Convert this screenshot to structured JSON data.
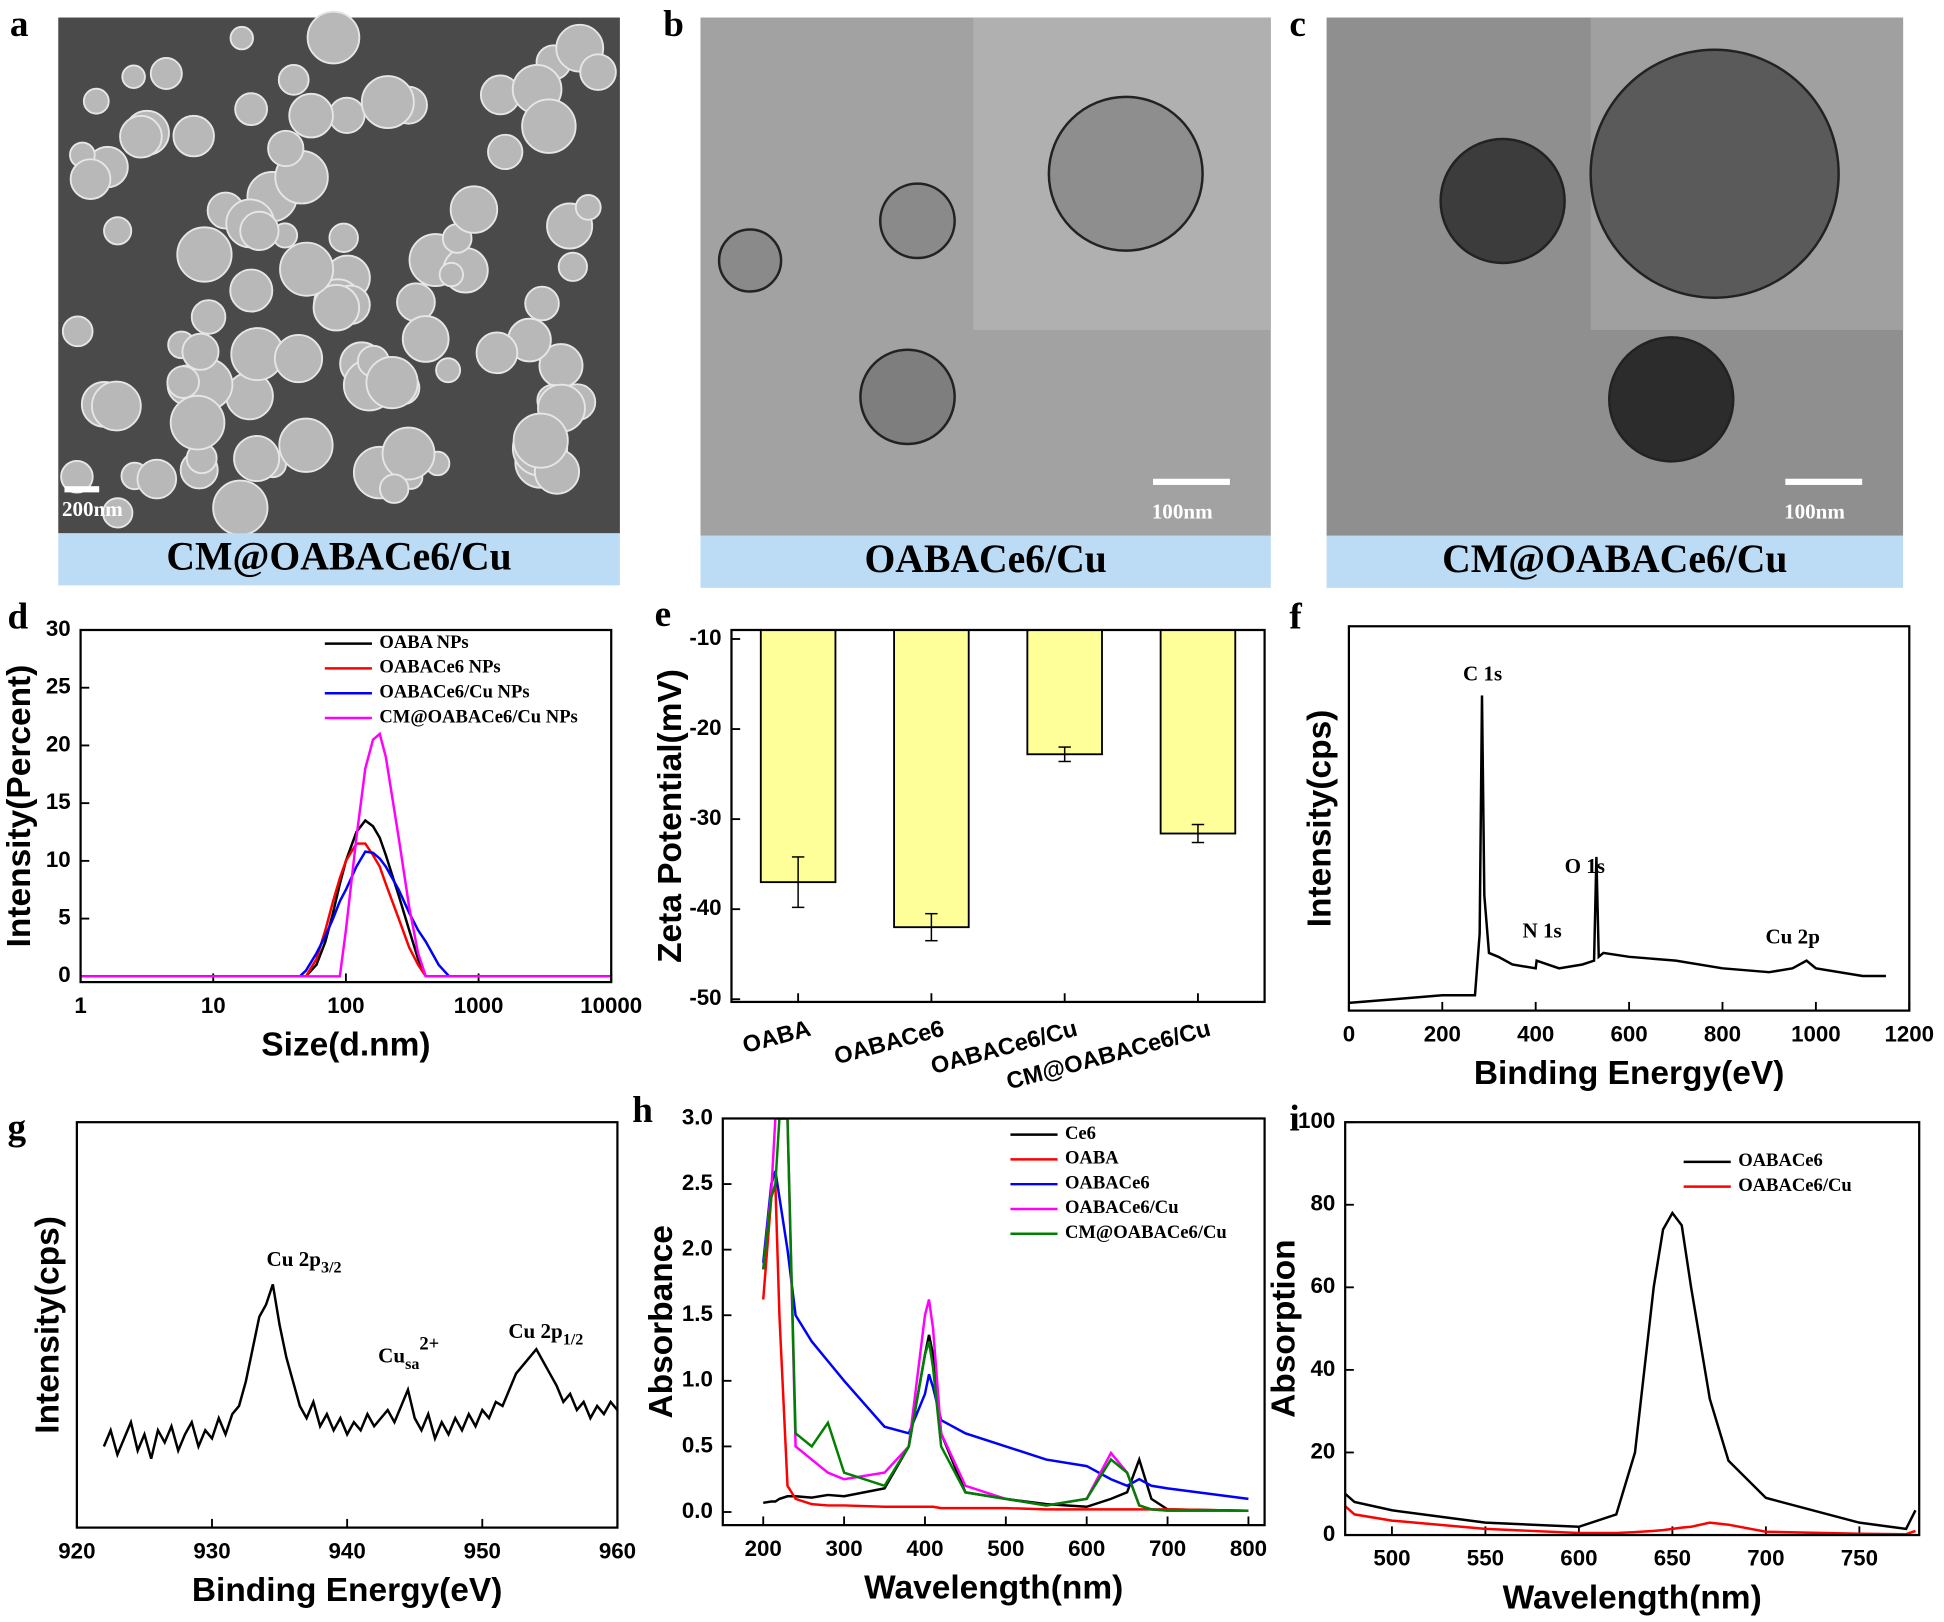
{
  "panels": [
    {
      "letter": "a",
      "caption": "CM@OABACe6/Cu",
      "scale_bar": "200nm"
    },
    {
      "letter": "b",
      "caption": "OABACe6/Cu",
      "scale_bar": "100nm"
    },
    {
      "letter": "c",
      "caption": "CM@OABACe6/Cu",
      "scale_bar": "100nm"
    }
  ],
  "chart_data": [
    {
      "type": "line",
      "letter": "d",
      "xlabel": "Size(d.nm)",
      "ylabel": "Intensity(Percent)",
      "xscale": "log",
      "xlim": [
        1,
        10000
      ],
      "xticks": [
        1,
        10,
        100,
        1000,
        10000
      ],
      "ylim": [
        -0.5,
        30
      ],
      "yticks": [
        0,
        5,
        10,
        15,
        20,
        25,
        30
      ],
      "x": [
        1,
        10,
        45,
        50,
        60,
        70,
        80,
        90,
        100,
        120,
        140,
        160,
        180,
        200,
        250,
        300,
        350,
        400,
        500,
        600,
        1000,
        10000
      ],
      "series": [
        {
          "name": "OABA NPs",
          "color": "#000000",
          "values": [
            0,
            0,
            0,
            0,
            1,
            3,
            5.5,
            8,
            10,
            12.5,
            13.5,
            13,
            12,
            10.5,
            7,
            4,
            1.5,
            0,
            0,
            0,
            0,
            0
          ]
        },
        {
          "name": "OABACe6 NPs",
          "color": "#ff0000",
          "values": [
            0,
            0,
            0,
            0,
            1.5,
            4,
            6.5,
            8.5,
            10,
            11.5,
            11.5,
            10.5,
            9.5,
            8,
            5,
            2.5,
            1,
            0,
            0,
            0,
            0,
            0
          ]
        },
        {
          "name": "OABACe6/Cu NPs",
          "color": "#0000ff",
          "values": [
            0,
            0,
            0,
            0.5,
            2,
            3.5,
            5,
            6.5,
            7.5,
            9.5,
            10.8,
            10.7,
            10.2,
            9.5,
            7.5,
            5.5,
            4,
            3,
            1,
            0,
            0,
            0
          ]
        },
        {
          "name": "CM@OABACe6/Cu NPs",
          "color": "#ff00ff",
          "values": [
            0,
            0,
            0,
            0,
            0,
            0,
            0,
            0,
            4,
            12,
            18,
            20.5,
            21,
            19,
            12,
            6,
            2,
            0,
            0,
            0,
            0,
            0
          ]
        }
      ]
    },
    {
      "type": "bar",
      "letter": "e",
      "ylabel": "Zeta Potential(mV)",
      "color": "#ffff99",
      "categories": [
        "OABA",
        "OABACe6",
        "OABACe6/Cu",
        "CM@OABACe6/Cu"
      ],
      "values": [
        -37,
        -42,
        -22.8,
        -31.6
      ],
      "errors": [
        2.8,
        1.5,
        0.8,
        1
      ],
      "ylim": [
        -50.3,
        -9
      ],
      "yticks": [
        -50,
        -40,
        -30,
        -20,
        -10
      ]
    },
    {
      "type": "line",
      "letter": "f",
      "xlabel": "Binding Energy(eV)",
      "ylabel": "Intensity(cps)",
      "xlim": [
        0,
        1200
      ],
      "xticks": [
        0,
        200,
        400,
        600,
        800,
        1000,
        1200
      ],
      "ylim": [
        0,
        100
      ],
      "annotations": [
        "C 1s",
        "N 1s",
        "O 1s",
        "Cu 2p"
      ],
      "x": [
        0,
        100,
        200,
        270,
        280,
        285,
        290,
        300,
        320,
        350,
        400,
        402,
        450,
        500,
        525,
        530,
        535,
        545,
        600,
        700,
        800,
        900,
        950,
        980,
        1000,
        1100,
        1150
      ],
      "series": [
        {
          "color": "#000000",
          "values": [
            2,
            3,
            4,
            4,
            20,
            82,
            30,
            15,
            14,
            12,
            11,
            13,
            11,
            12,
            13,
            40,
            14,
            15,
            14,
            13,
            11,
            10,
            11,
            13,
            11,
            9,
            9
          ]
        }
      ]
    },
    {
      "type": "line",
      "letter": "g",
      "xlabel": "Binding Energy(eV)",
      "ylabel": "Intensity(cps)",
      "xlim": [
        920,
        960
      ],
      "xticks": [
        920,
        930,
        940,
        950,
        960
      ],
      "ylim": [
        0,
        100
      ],
      "annotations": [
        {
          "text": "Cu 2p",
          "sub": "3/2"
        },
        {
          "text": "Cu",
          "sub": "sa",
          "sup": "2+"
        },
        {
          "text": "Cu 2p",
          "sub": "1/2"
        }
      ],
      "x": [
        922,
        922.5,
        923,
        923.5,
        924,
        924.5,
        925,
        925.5,
        926,
        926.5,
        927,
        927.5,
        928,
        928.5,
        929,
        929.5,
        930,
        930.5,
        931,
        931.5,
        932,
        932.5,
        933,
        933.5,
        934,
        934.5,
        935,
        935.5,
        936,
        936.5,
        937,
        937.5,
        938,
        938.5,
        939,
        939.5,
        940,
        940.5,
        941,
        941.5,
        942,
        942.5,
        943,
        943.5,
        944,
        944.5,
        945,
        945.5,
        946,
        946.5,
        947,
        947.5,
        948,
        948.5,
        949,
        949.5,
        950,
        950.5,
        951,
        951.5,
        952,
        952.5,
        953,
        953.5,
        954,
        954.5,
        955,
        955.5,
        956,
        956.5,
        957,
        957.5,
        958,
        958.5,
        959,
        959.5,
        960
      ],
      "series": [
        {
          "color": "#000000",
          "values": [
            20,
            24,
            18,
            22,
            26,
            19,
            23,
            17,
            24,
            21,
            25,
            19,
            23,
            26,
            20,
            24,
            22,
            27,
            23,
            28,
            30,
            36,
            44,
            52,
            55,
            60,
            50,
            42,
            36,
            30,
            27,
            31,
            25,
            28,
            24,
            27,
            23,
            26,
            24,
            28,
            25,
            27,
            29,
            26,
            30,
            34,
            27,
            24,
            28,
            22,
            26,
            23,
            27,
            24,
            28,
            25,
            29,
            27,
            31,
            30,
            34,
            38,
            40,
            42,
            44,
            41,
            38,
            35,
            31,
            33,
            29,
            31,
            27,
            30,
            28,
            31,
            29
          ]
        }
      ]
    },
    {
      "type": "line",
      "letter": "h",
      "xlabel": "Wavelength(nm)",
      "ylabel": "Absorbance",
      "xlim": [
        150,
        820
      ],
      "xticks": [
        200,
        300,
        400,
        500,
        600,
        700,
        800
      ],
      "ylim": [
        -0.1,
        3.0
      ],
      "yticks": [
        {
          "value": 0,
          "label": "0.0"
        },
        0.5,
        {
          "value": 1,
          "label": "1.0"
        },
        1.5,
        {
          "value": 2,
          "label": "2.0"
        },
        2.5,
        {
          "value": 3,
          "label": "3.0"
        }
      ],
      "x": [
        200,
        210,
        215,
        220,
        230,
        240,
        260,
        280,
        300,
        350,
        380,
        400,
        405,
        410,
        420,
        450,
        500,
        550,
        600,
        630,
        650,
        665,
        680,
        700,
        800
      ],
      "series": [
        {
          "name": "Ce6",
          "color": "#000000",
          "values": [
            0.07,
            0.08,
            0.08,
            0.1,
            0.12,
            0.12,
            0.11,
            0.13,
            0.12,
            0.18,
            0.5,
            1.2,
            1.35,
            1.2,
            0.6,
            0.15,
            0.1,
            0.06,
            0.04,
            0.1,
            0.15,
            0.4,
            0.1,
            0.02,
            0.01
          ]
        },
        {
          "name": "OABA",
          "color": "#ff0000",
          "values": [
            1.62,
            2.4,
            2.5,
            1.5,
            0.2,
            0.1,
            0.06,
            0.05,
            0.05,
            0.04,
            0.04,
            0.04,
            0.04,
            0.04,
            0.03,
            0.03,
            0.03,
            0.02,
            0.02,
            0.02,
            0.02,
            0.02,
            0.02,
            0.02,
            0.01
          ]
        },
        {
          "name": "OABACe6",
          "color": "#0000ff",
          "values": [
            1.9,
            2.5,
            2.6,
            2.4,
            2.0,
            1.5,
            1.3,
            1.15,
            1.0,
            0.65,
            0.6,
            0.9,
            1.05,
            0.95,
            0.7,
            0.6,
            0.5,
            0.4,
            0.35,
            0.25,
            0.2,
            0.25,
            0.2,
            0.18,
            0.1
          ]
        },
        {
          "name": "OABACe6/Cu",
          "color": "#ff00ff",
          "values": [
            1.85,
            2.45,
            3.0,
            3.0,
            3.0,
            0.5,
            0.4,
            0.3,
            0.25,
            0.3,
            0.5,
            1.5,
            1.62,
            1.4,
            0.6,
            0.2,
            0.1,
            0.05,
            0.1,
            0.45,
            0.3,
            0.05,
            0.02,
            0.01,
            0.01
          ]
        },
        {
          "name": "CM@OABACe6/Cu",
          "color": "#008000",
          "values": [
            1.85,
            2.4,
            2.5,
            3.0,
            3.0,
            0.6,
            0.5,
            0.68,
            0.3,
            0.2,
            0.5,
            1.2,
            1.3,
            1.1,
            0.5,
            0.15,
            0.1,
            0.05,
            0.1,
            0.4,
            0.3,
            0.05,
            0.02,
            0.01,
            0.01
          ]
        }
      ]
    },
    {
      "type": "line",
      "letter": "i",
      "xlabel": "Wavelength(nm)",
      "ylabel": "Absorption",
      "xlim": [
        475,
        782
      ],
      "xticks": [
        500,
        550,
        600,
        650,
        700,
        750
      ],
      "ylim": [
        0,
        100
      ],
      "yticks": [
        0,
        20,
        40,
        60,
        80,
        100
      ],
      "x": [
        475,
        480,
        500,
        550,
        600,
        620,
        630,
        640,
        645,
        650,
        655,
        660,
        670,
        680,
        700,
        750,
        775,
        780
      ],
      "series": [
        {
          "name": "OABACe6",
          "color": "#000000",
          "values": [
            10,
            8,
            6,
            3,
            2,
            5,
            20,
            60,
            74,
            78,
            75,
            60,
            33,
            18,
            9,
            3,
            1.5,
            6
          ]
        },
        {
          "name": "OABACe6/Cu",
          "color": "#ff0000",
          "values": [
            7,
            5,
            3.5,
            1.5,
            0.5,
            0.5,
            0.7,
            1,
            1.2,
            1.5,
            1.8,
            2,
            3,
            2.5,
            0.8,
            0.3,
            0.2,
            1
          ]
        }
      ]
    }
  ]
}
